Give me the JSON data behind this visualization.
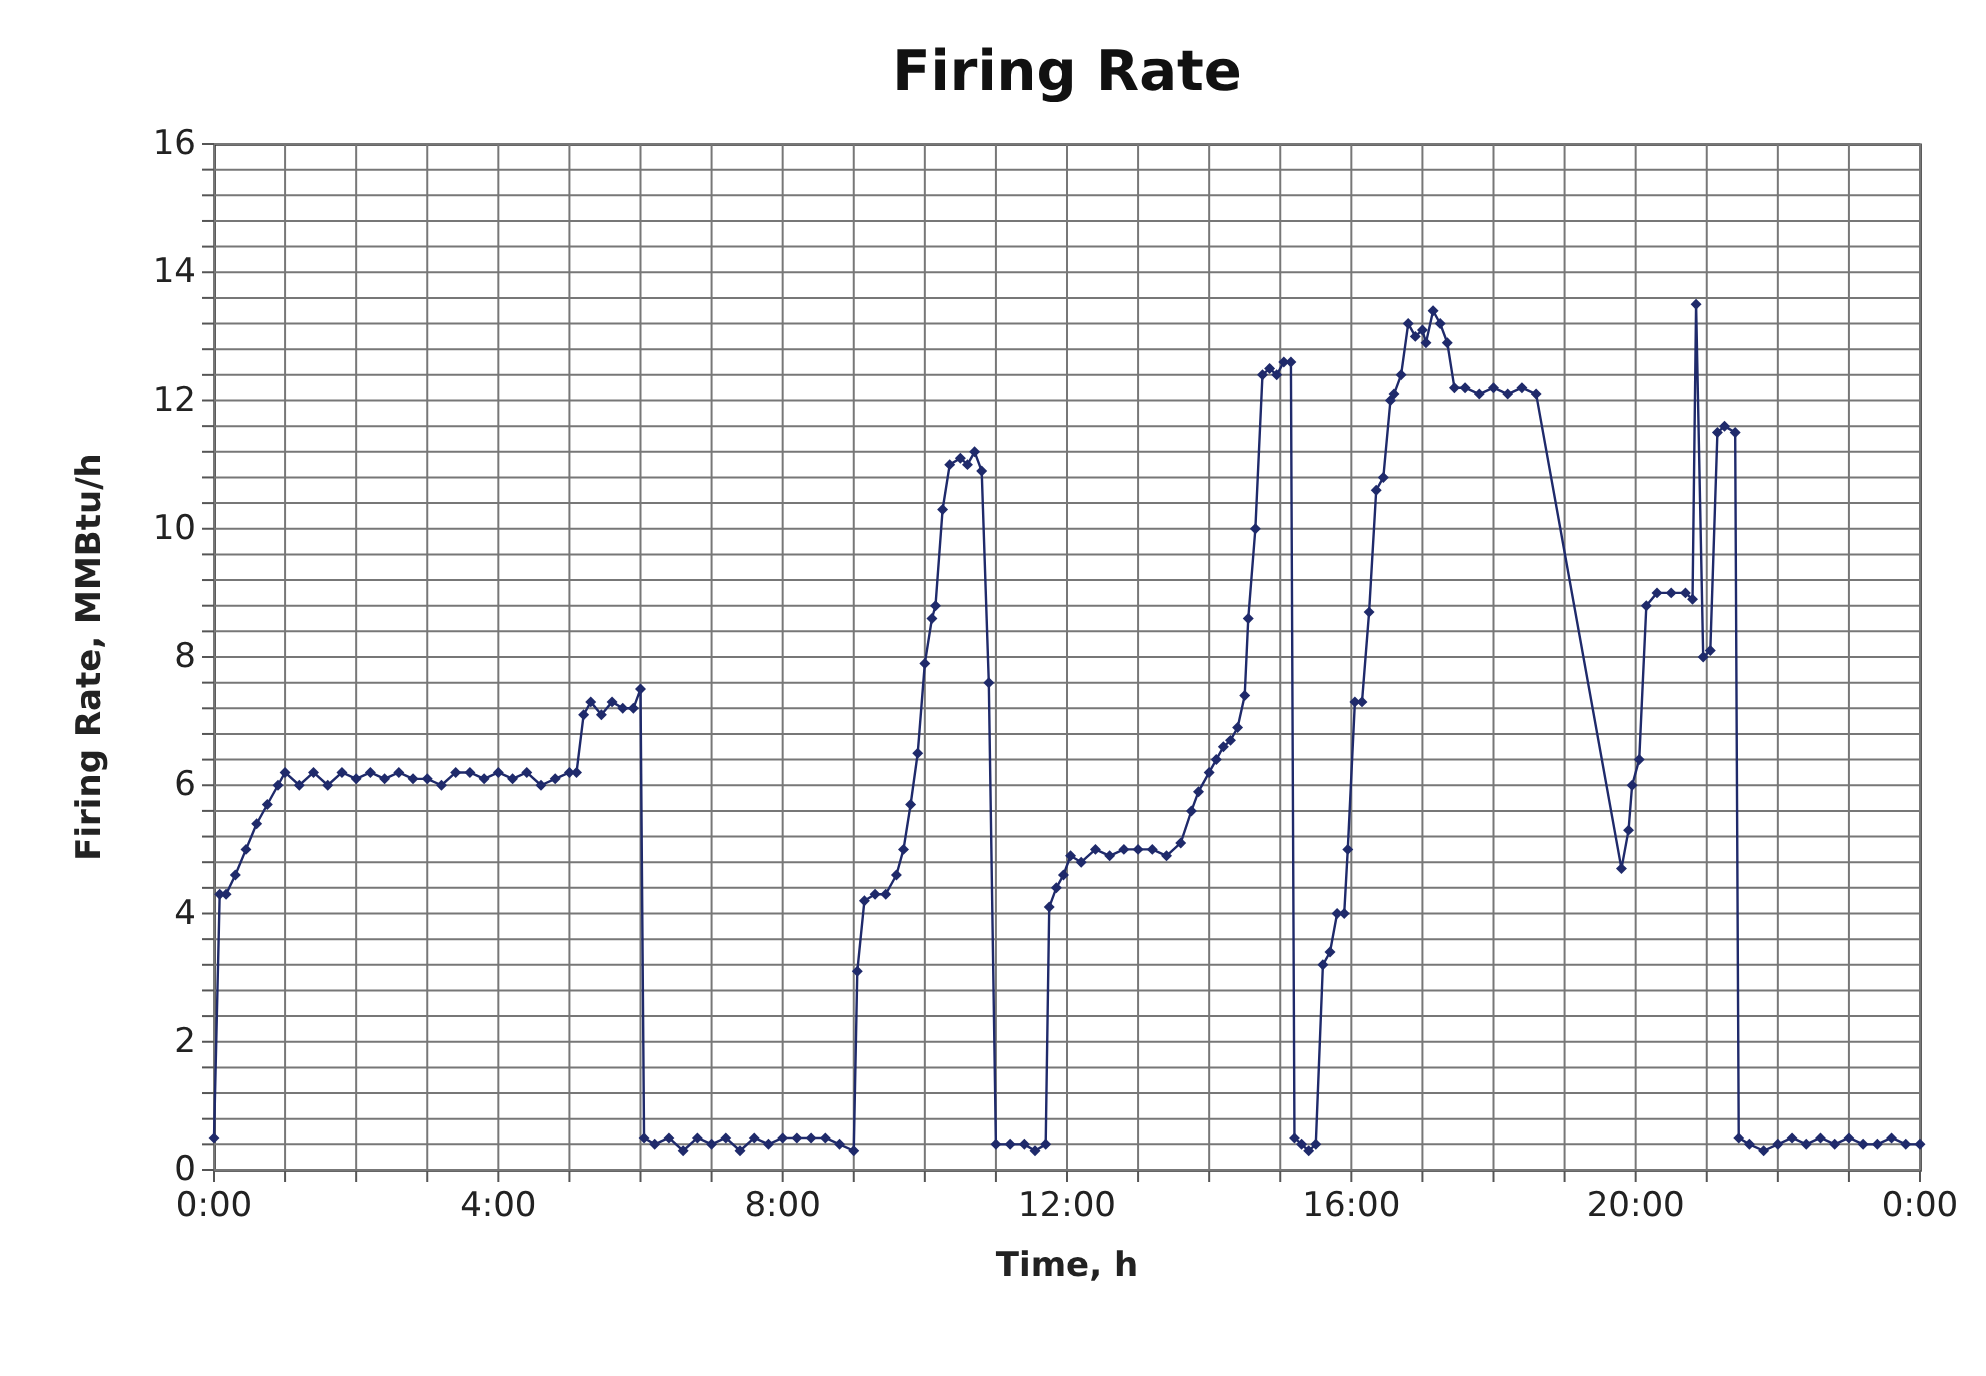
{
  "chart_data": {
    "type": "line",
    "title": "Firing Rate",
    "xlabel": "Time, h",
    "ylabel": "Firing Rate, MMBtu/h",
    "x": [
      0,
      0.08,
      0.17,
      0.3,
      0.45,
      0.6,
      0.75,
      0.9,
      1.0,
      1.2,
      1.4,
      1.6,
      1.8,
      2.0,
      2.2,
      2.4,
      2.6,
      2.8,
      3.0,
      3.2,
      3.4,
      3.6,
      3.8,
      4.0,
      4.2,
      4.4,
      4.6,
      4.8,
      5.0,
      5.1,
      5.2,
      5.3,
      5.45,
      5.6,
      5.75,
      5.9,
      6.0,
      6.05,
      6.2,
      6.4,
      6.6,
      6.8,
      7.0,
      7.2,
      7.4,
      7.6,
      7.8,
      8.0,
      8.2,
      8.4,
      8.6,
      8.8,
      9.0,
      9.05,
      9.15,
      9.3,
      9.45,
      9.6,
      9.7,
      9.8,
      9.9,
      10.0,
      10.1,
      10.15,
      10.25,
      10.35,
      10.5,
      10.6,
      10.7,
      10.8,
      10.9,
      11.0,
      11.2,
      11.4,
      11.55,
      11.7,
      11.75,
      11.85,
      11.95,
      12.05,
      12.2,
      12.4,
      12.6,
      12.8,
      13.0,
      13.2,
      13.4,
      13.6,
      13.75,
      13.85,
      14.0,
      14.1,
      14.2,
      14.3,
      14.4,
      14.5,
      14.55,
      14.65,
      14.75,
      14.85,
      14.95,
      15.05,
      15.15,
      15.2,
      15.3,
      15.4,
      15.5,
      15.6,
      15.7,
      15.8,
      15.9,
      15.95,
      16.05,
      16.15,
      16.25,
      16.35,
      16.45,
      16.55,
      16.6,
      16.7,
      16.8,
      16.9,
      17.0,
      17.05,
      17.15,
      17.25,
      17.35,
      17.45,
      17.6,
      17.8,
      18.0,
      18.2,
      18.4,
      18.6,
      19.8,
      19.9,
      19.95,
      20.05,
      20.15,
      20.3,
      20.5,
      20.7,
      20.8,
      20.85,
      20.95,
      21.05,
      21.15,
      21.25,
      21.4,
      21.45,
      21.6,
      21.8,
      22.0,
      22.2,
      22.4,
      22.6,
      22.8,
      23.0,
      23.2,
      23.4,
      23.6,
      23.8,
      24.0
    ],
    "series": [
      {
        "color": "#1f2a6b",
        "values": [
          0.5,
          4.3,
          4.3,
          4.6,
          5.0,
          5.4,
          5.7,
          6.0,
          6.2,
          6.0,
          6.2,
          6.0,
          6.2,
          6.1,
          6.2,
          6.1,
          6.2,
          6.1,
          6.1,
          6.0,
          6.2,
          6.2,
          6.1,
          6.2,
          6.1,
          6.2,
          6.0,
          6.1,
          6.2,
          6.2,
          7.1,
          7.3,
          7.1,
          7.3,
          7.2,
          7.2,
          7.5,
          0.5,
          0.4,
          0.5,
          0.3,
          0.5,
          0.4,
          0.5,
          0.3,
          0.5,
          0.4,
          0.5,
          0.5,
          0.5,
          0.5,
          0.4,
          0.3,
          3.1,
          4.2,
          4.3,
          4.3,
          4.6,
          5.0,
          5.7,
          6.5,
          7.9,
          8.6,
          8.8,
          10.3,
          11.0,
          11.1,
          11.0,
          11.2,
          10.9,
          7.6,
          0.4,
          0.4,
          0.4,
          0.3,
          0.4,
          4.1,
          4.4,
          4.6,
          4.9,
          4.8,
          5.0,
          4.9,
          5.0,
          5.0,
          5.0,
          4.9,
          5.1,
          5.6,
          5.9,
          6.2,
          6.4,
          6.6,
          6.7,
          6.9,
          7.4,
          8.6,
          10.0,
          12.4,
          12.5,
          12.4,
          12.6,
          12.6,
          0.5,
          0.4,
          0.3,
          0.4,
          3.2,
          3.4,
          4.0,
          4.0,
          5.0,
          7.3,
          7.3,
          8.7,
          10.6,
          10.8,
          12.0,
          12.1,
          12.4,
          13.2,
          13.0,
          13.1,
          12.9,
          13.4,
          13.2,
          12.9,
          12.2,
          12.2,
          12.1,
          12.2,
          12.1,
          12.2,
          12.1,
          4.7,
          5.3,
          6.0,
          6.4,
          8.8,
          9.0,
          9.0,
          9.0,
          8.9,
          13.5,
          8.0,
          8.1,
          11.5,
          11.6,
          11.5,
          0.5,
          0.4,
          0.3,
          0.4,
          0.5,
          0.4,
          0.5,
          0.4,
          0.5,
          0.4,
          0.4,
          0.5,
          0.4,
          0.4
        ]
      }
    ],
    "xlim": [
      0,
      24
    ],
    "xticks": [
      {
        "value": 0,
        "label": "0:00"
      },
      {
        "value": 1,
        "label": null
      },
      {
        "value": 2,
        "label": null
      },
      {
        "value": 3,
        "label": null
      },
      {
        "value": 4,
        "label": "4:00"
      },
      {
        "value": 5,
        "label": null
      },
      {
        "value": 6,
        "label": null
      },
      {
        "value": 7,
        "label": null
      },
      {
        "value": 8,
        "label": "8:00"
      },
      {
        "value": 9,
        "label": null
      },
      {
        "value": 10,
        "label": null
      },
      {
        "value": 11,
        "label": null
      },
      {
        "value": 12,
        "label": "12:00"
      },
      {
        "value": 13,
        "label": null
      },
      {
        "value": 14,
        "label": null
      },
      {
        "value": 15,
        "label": null
      },
      {
        "value": 16,
        "label": "16:00"
      },
      {
        "value": 17,
        "label": null
      },
      {
        "value": 18,
        "label": null
      },
      {
        "value": 19,
        "label": null
      },
      {
        "value": 20,
        "label": "20:00"
      },
      {
        "value": 21,
        "label": null
      },
      {
        "value": 22,
        "label": null
      },
      {
        "value": 23,
        "label": null
      },
      {
        "value": 24,
        "label": "0:00"
      }
    ],
    "ylim": [
      0,
      16
    ],
    "yticks": [
      0,
      {
        "value": 0.4,
        "label": null
      },
      {
        "value": 0.8,
        "label": null
      },
      {
        "value": 1.2,
        "label": null
      },
      {
        "value": 1.6,
        "label": null
      },
      2,
      {
        "value": 2.4,
        "label": null
      },
      {
        "value": 2.8,
        "label": null
      },
      {
        "value": 3.2,
        "label": null
      },
      {
        "value": 3.6,
        "label": null
      },
      4,
      {
        "value": 4.4,
        "label": null
      },
      {
        "value": 4.8,
        "label": null
      },
      {
        "value": 5.2,
        "label": null
      },
      {
        "value": 5.6,
        "label": null
      },
      6,
      {
        "value": 6.4,
        "label": null
      },
      {
        "value": 6.8,
        "label": null
      },
      {
        "value": 7.2,
        "label": null
      },
      {
        "value": 7.6,
        "label": null
      },
      8,
      {
        "value": 8.4,
        "label": null
      },
      {
        "value": 8.8,
        "label": null
      },
      {
        "value": 9.2,
        "label": null
      },
      {
        "value": 9.6,
        "label": null
      },
      10,
      {
        "value": 10.4,
        "label": null
      },
      {
        "value": 10.8,
        "label": null
      },
      {
        "value": 11.2,
        "label": null
      },
      {
        "value": 11.6,
        "label": null
      },
      12,
      {
        "value": 12.4,
        "label": null
      },
      {
        "value": 12.8,
        "label": null
      },
      {
        "value": 13.2,
        "label": null
      },
      {
        "value": 13.6,
        "label": null
      },
      14,
      {
        "value": 14.4,
        "label": null
      },
      {
        "value": 14.8,
        "label": null
      },
      {
        "value": 15.2,
        "label": null
      },
      {
        "value": 15.6,
        "label": null
      },
      16
    ],
    "grid": true,
    "marker": "diamond",
    "line_style": "solid"
  }
}
